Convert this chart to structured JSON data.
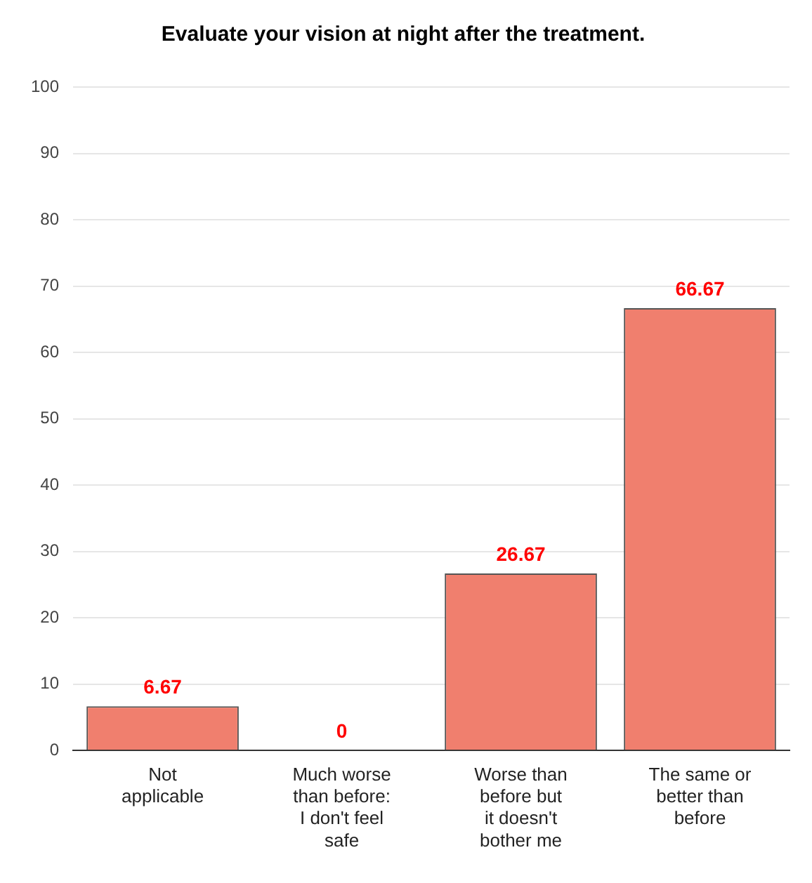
{
  "chart_data": {
    "type": "bar",
    "title": "Evaluate your vision at night after the treatment.",
    "categories": [
      "Not applicable",
      "Much worse than before: I don't feel safe",
      "Worse than before but it doesn't bother me",
      "The same or better than before"
    ],
    "values": [
      6.67,
      0,
      26.67,
      66.67
    ],
    "color": "#f07f6e",
    "ylim": [
      0,
      100
    ],
    "yticks": [
      0,
      10,
      20,
      30,
      40,
      50,
      60,
      70,
      80,
      90,
      100
    ],
    "grid": "y",
    "data_labels": true,
    "legend": false
  }
}
